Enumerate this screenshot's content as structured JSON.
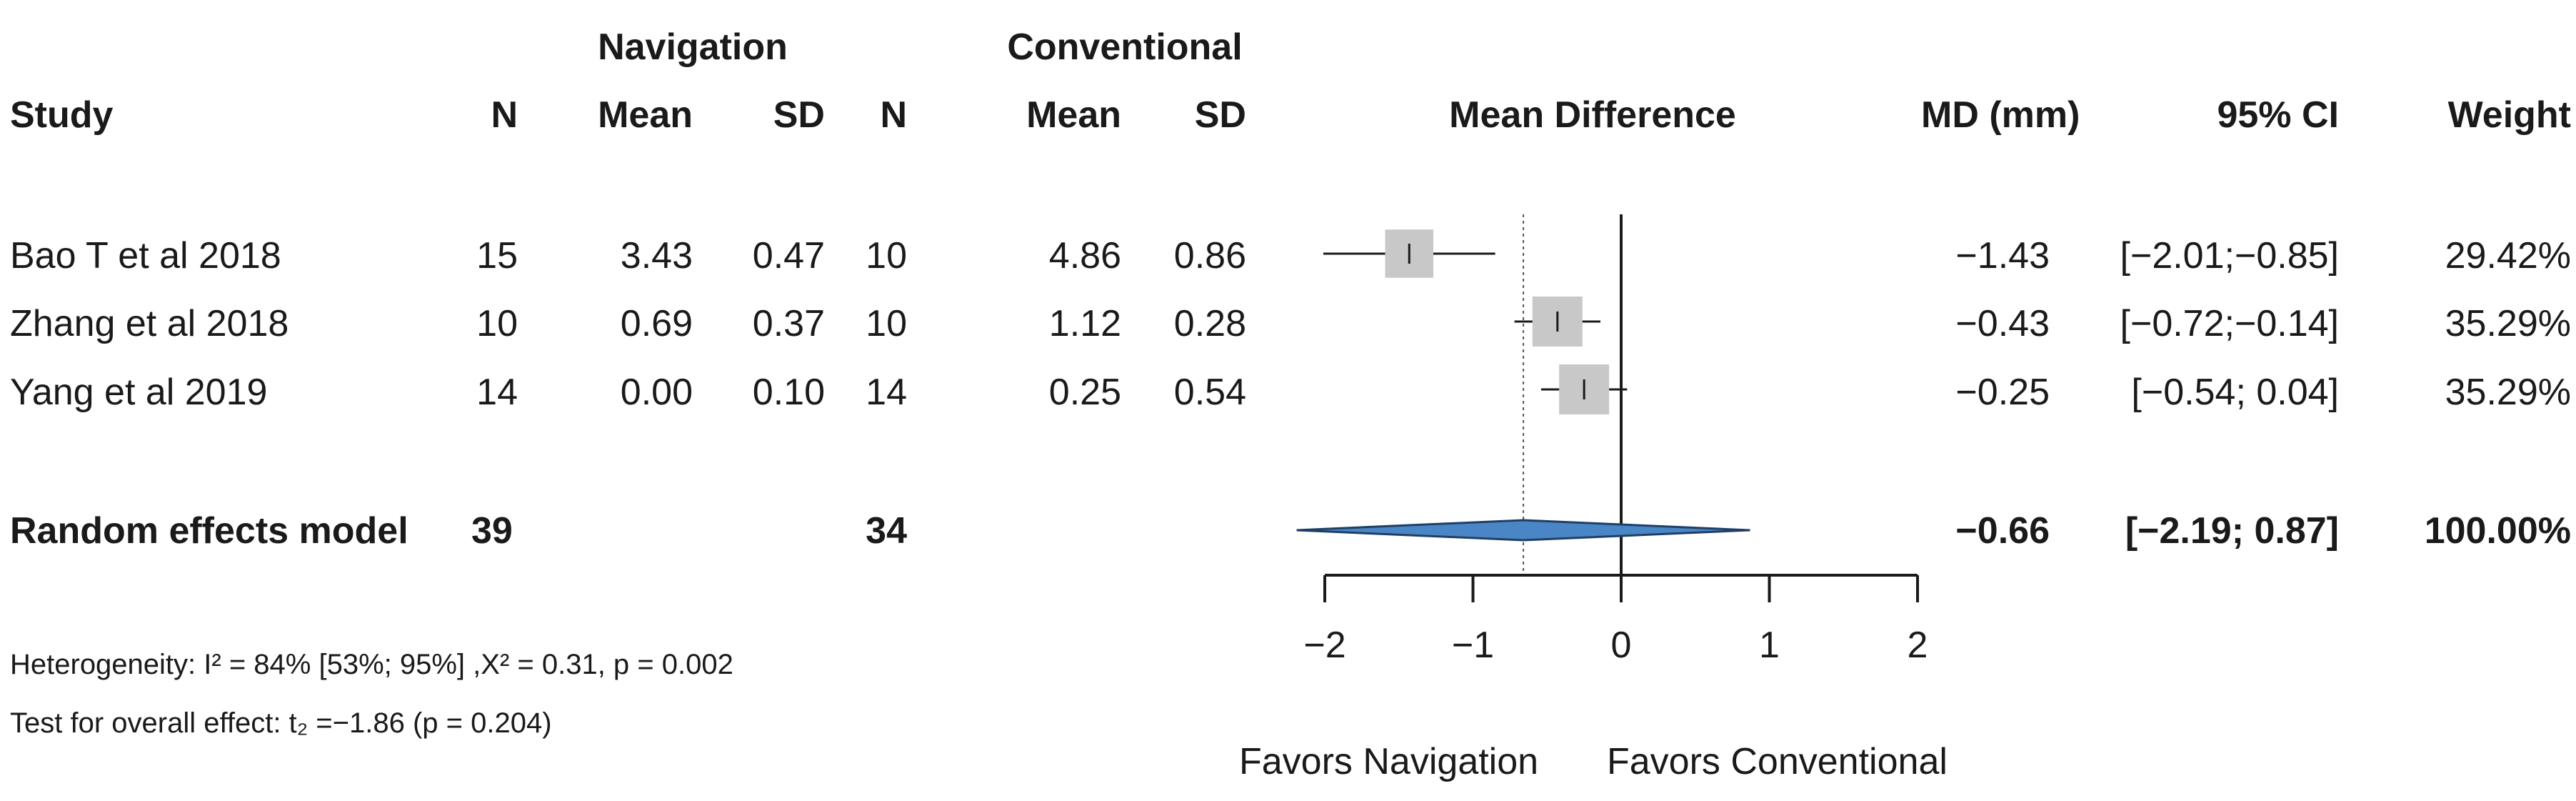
{
  "chart_data": {
    "type": "forest",
    "group_headers": {
      "experimental": "Navigation",
      "control": "Conventional"
    },
    "columns": {
      "study": "Study",
      "n1": "N",
      "mean1": "Mean",
      "sd1": "SD",
      "n2": "N",
      "mean2": "Mean",
      "sd2": "SD",
      "plot": "Mean Difference",
      "md": "MD (mm)",
      "ci": "95% CI",
      "weight": "Weight"
    },
    "studies": [
      {
        "name": "Bao T et al 2018",
        "n1": "15",
        "mean1": "3.43",
        "sd1": "0.47",
        "n2": "10",
        "mean2": "4.86",
        "sd2": "0.86",
        "md_text": "−1.43",
        "ci_text": "[−2.01;−0.85]",
        "weight_text": "29.42%",
        "md": -1.43,
        "lower": -2.01,
        "upper": -0.85,
        "weight": 29.42
      },
      {
        "name": "Zhang et al 2018",
        "n1": "10",
        "mean1": "0.69",
        "sd1": "0.37",
        "n2": "10",
        "mean2": "1.12",
        "sd2": "0.28",
        "md_text": "−0.43",
        "ci_text": "[−0.72;−0.14]",
        "weight_text": "35.29%",
        "md": -0.43,
        "lower": -0.72,
        "upper": -0.14,
        "weight": 35.29
      },
      {
        "name": "Yang et al 2019",
        "n1": "14",
        "mean1": "0.00",
        "sd1": "0.10",
        "n2": "14",
        "mean2": "0.25",
        "sd2": "0.54",
        "md_text": "−0.25",
        "ci_text": "[−0.54; 0.04]",
        "weight_text": "35.29%",
        "md": -0.25,
        "lower": -0.54,
        "upper": 0.04,
        "weight": 35.29
      }
    ],
    "overall": {
      "name": "Random effects model",
      "n1": "39",
      "n2": "34",
      "md_text": "−0.66",
      "ci_text": "[−2.19; 0.87]",
      "weight_text": "100.00%",
      "md": -0.66,
      "lower": -2.19,
      "upper": 0.87
    },
    "heterogeneity_text": "Heterogeneity: I² = 84% [53%; 95%] ,X² = 0.31, p = 0.002",
    "overall_effect_text": "Test for overall effect: t₂ =−1.86 (p = 0.204)",
    "xlim": [
      -2,
      2
    ],
    "ticks": [
      -2,
      -1,
      0,
      1,
      2
    ],
    "tick_labels": [
      "−2",
      "−1",
      "0",
      "1",
      "2"
    ],
    "favors_left": "Favors Navigation",
    "favors_right": "Favors Conventional",
    "colors": {
      "box": "#c8c8c8",
      "diamond": "#4a86c5",
      "line": "#1a1a1a"
    }
  }
}
